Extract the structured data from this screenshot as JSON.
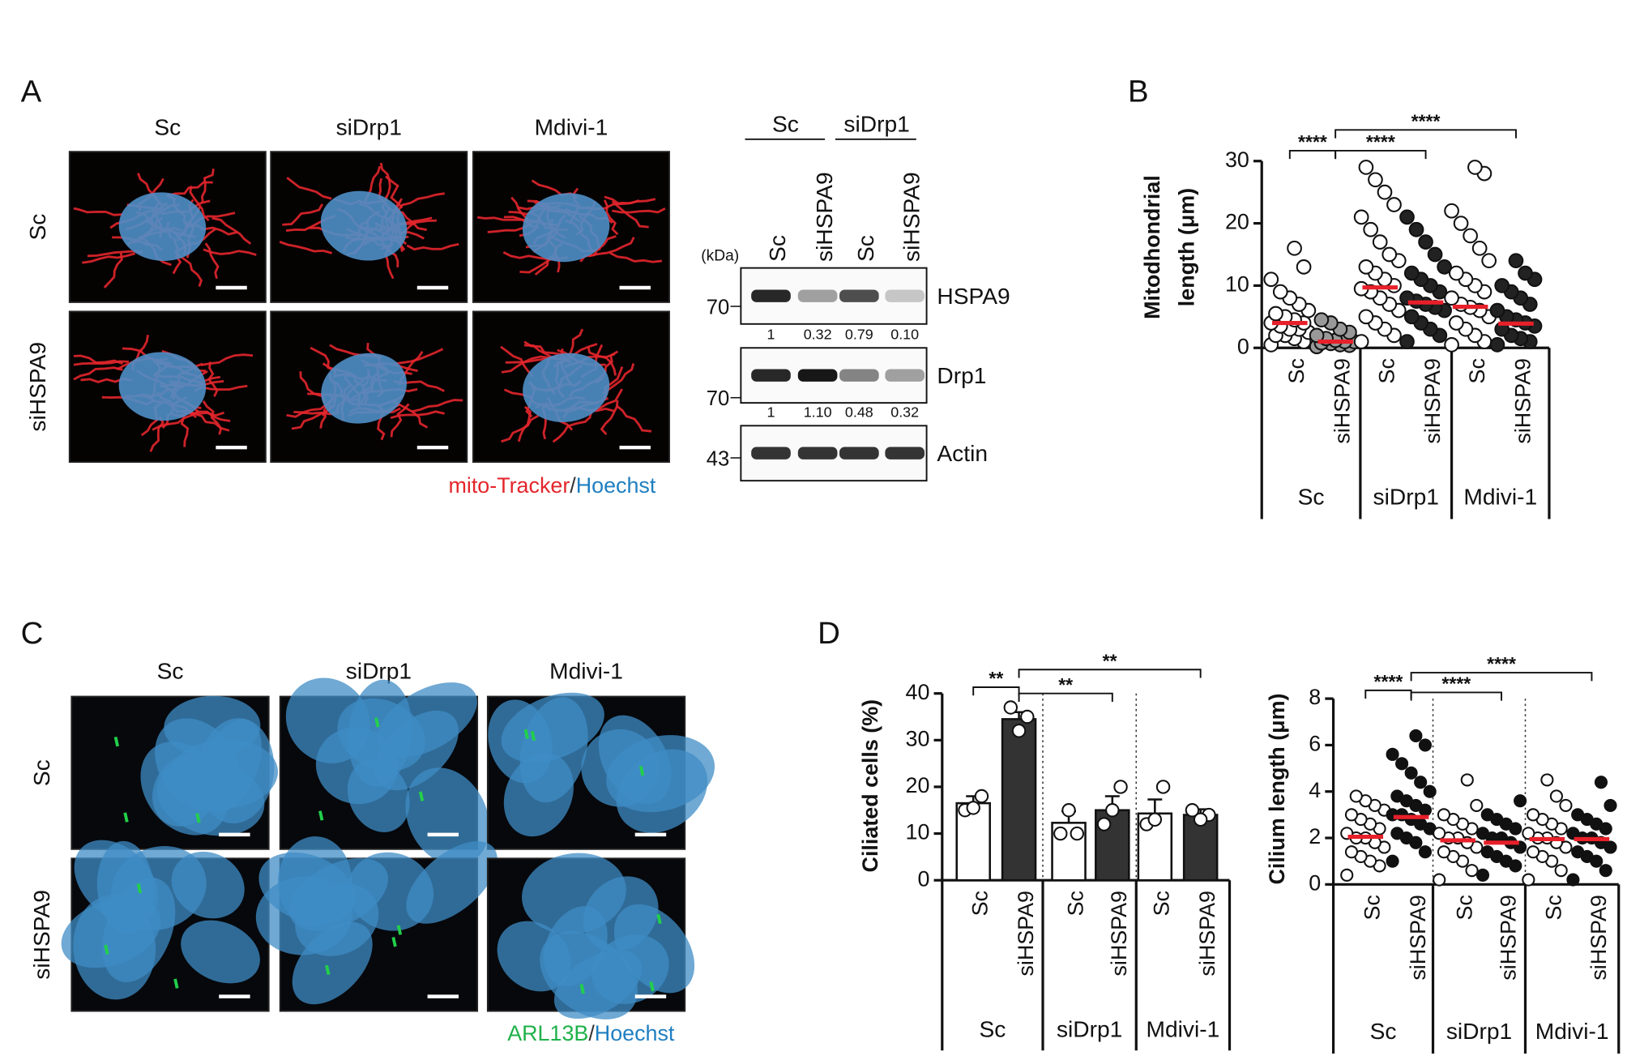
{
  "panel_labels": [
    "A",
    "B",
    "C",
    "D"
  ],
  "panel_a": {
    "columns": [
      "Sc",
      "siDrp1",
      "Mdivi-1"
    ],
    "rows": [
      "Sc",
      "siHSPA9"
    ],
    "legend": [
      {
        "text": "mito-Tracker",
        "color": "#e3262c"
      },
      {
        "text": "/",
        "color": "#333333"
      },
      {
        "text": "Hoechst",
        "color": "#1f7fc1"
      }
    ]
  },
  "western": {
    "unit": "(kDa)",
    "groups": [
      "Sc",
      "siDrp1"
    ],
    "lanes": [
      "Sc",
      "siHSPA9",
      "Sc",
      "siHSPA9"
    ],
    "blots": [
      {
        "name": "HSPA9",
        "marker": 70,
        "quant": [
          1,
          0.32,
          0.79,
          0.1
        ],
        "quant_labels": [
          "1",
          "0.32",
          "0.79",
          "0.10"
        ]
      },
      {
        "name": "Drp1",
        "marker": 70,
        "quant": [
          1,
          1.1,
          0.48,
          0.32
        ],
        "quant_labels": [
          "1",
          "1.10",
          "0.48",
          "0.32"
        ]
      },
      {
        "name": "Actin",
        "marker": 43
      }
    ]
  },
  "panel_c": {
    "columns": [
      "Sc",
      "siDrp1",
      "Mdivi-1"
    ],
    "rows": [
      "Sc",
      "siHSPA9"
    ],
    "legend": [
      {
        "text": "ARL13B",
        "color": "#1fb14a"
      },
      {
        "text": "/",
        "color": "#333333"
      },
      {
        "text": "Hoechst",
        "color": "#1f7fc1"
      }
    ]
  },
  "chart_data": [
    {
      "type": "dot",
      "ylabel": [
        "Mitodhondrial",
        "length (μm)"
      ],
      "ylim": [
        0,
        30
      ],
      "yticks": [
        0,
        10,
        20,
        30
      ],
      "categories": [
        "Sc",
        "siHSPA9",
        "Sc",
        "siHSPA9",
        "Sc",
        "siHSPA9"
      ],
      "groups": [
        {
          "label": "Sc",
          "span": [
            0,
            1
          ]
        },
        {
          "label": "siDrp1",
          "span": [
            2,
            3
          ]
        },
        {
          "label": "Mdivi-1",
          "span": [
            4,
            5
          ]
        }
      ],
      "point_colors": [
        "#ffffff",
        "#999999",
        "#ffffff",
        "#222222",
        "#ffffff",
        "#222222"
      ],
      "points": [
        [
          0.5,
          1,
          1.5,
          2,
          2,
          2.5,
          3,
          3,
          3.5,
          4,
          4,
          4.5,
          5,
          5.5,
          6,
          7,
          8,
          9,
          11,
          13,
          16
        ],
        [
          0.2,
          0.4,
          0.5,
          0.7,
          0.8,
          1,
          1,
          1.2,
          1.5,
          2,
          2.5,
          3,
          4,
          4.5
        ],
        [
          1,
          2,
          3,
          4,
          5,
          6,
          7,
          8,
          9,
          9.5,
          10,
          11,
          12,
          13,
          14,
          15,
          17,
          19,
          21,
          23,
          25,
          27,
          29
        ],
        [
          1,
          2,
          3,
          4,
          5,
          6,
          6.5,
          7,
          7.5,
          8,
          9,
          10,
          11,
          12,
          13,
          15,
          17,
          19,
          21
        ],
        [
          0.5,
          1,
          2,
          3,
          4,
          5,
          6,
          6.5,
          7,
          8,
          9,
          10,
          11,
          12,
          14,
          16,
          18,
          20,
          22,
          28,
          29
        ],
        [
          0.5,
          1,
          1.5,
          2,
          3,
          3.5,
          4,
          4.5,
          5,
          6,
          7,
          8,
          9,
          10,
          11,
          12,
          14
        ]
      ],
      "means": [
        4,
        1,
        9.7,
        7.3,
        6.6,
        3.9
      ],
      "mean_color": "#e8202a",
      "dividers": false,
      "significance": [
        {
          "from": 0,
          "to": 1,
          "label": "****"
        },
        {
          "from": 1,
          "to": 3,
          "label": "****"
        },
        {
          "from": 1,
          "to": 5,
          "label": "****"
        }
      ]
    },
    {
      "type": "bar",
      "ylabel": [
        "Ciliated cells (%)"
      ],
      "ylim": [
        0,
        40
      ],
      "yticks": [
        0,
        10,
        20,
        30,
        40
      ],
      "categories": [
        "Sc",
        "siHSPA9",
        "Sc",
        "siHSPA9",
        "Sc",
        "siHSPA9"
      ],
      "groups": [
        {
          "label": "Sc",
          "span": [
            0,
            1
          ]
        },
        {
          "label": "siDrp1",
          "span": [
            2,
            3
          ]
        },
        {
          "label": "Mdivi-1",
          "span": [
            4,
            5
          ]
        }
      ],
      "values": [
        16.5,
        34.5,
        12.3,
        15,
        14.3,
        14
      ],
      "errors": [
        1.5,
        1.5,
        2.5,
        3,
        3,
        1.2
      ],
      "bar_colors": [
        "#ffffff",
        "#333333",
        "#ffffff",
        "#333333",
        "#ffffff",
        "#333333"
      ],
      "point_colors": [
        "#ffffff",
        "#ffffff",
        "#ffffff",
        "#ffffff",
        "#ffffff",
        "#ffffff"
      ],
      "points": [
        [
          15,
          18,
          15.5
        ],
        [
          37,
          35,
          32
        ],
        [
          10,
          10,
          15
        ],
        [
          12,
          20,
          15
        ],
        [
          12,
          20,
          13
        ],
        [
          15,
          14,
          13
        ]
      ],
      "dividers": true,
      "significance": [
        {
          "from": 0,
          "to": 1,
          "label": "**"
        },
        {
          "from": 1,
          "to": 3,
          "label": "**"
        },
        {
          "from": 1,
          "to": 5,
          "label": "**"
        }
      ]
    },
    {
      "type": "dot",
      "ylabel": [
        "Cilium length (μm)"
      ],
      "ylim": [
        0,
        8
      ],
      "yticks": [
        0,
        2,
        4,
        6,
        8
      ],
      "categories": [
        "Sc",
        "siHSPA9",
        "Sc",
        "siHSPA9",
        "Sc",
        "siHSPA9"
      ],
      "groups": [
        {
          "label": "Sc",
          "span": [
            0,
            1
          ]
        },
        {
          "label": "siDrp1",
          "span": [
            2,
            3
          ]
        },
        {
          "label": "Mdivi-1",
          "span": [
            4,
            5
          ]
        }
      ],
      "point_colors": [
        "#ffffff",
        "#111111",
        "#ffffff",
        "#111111",
        "#ffffff",
        "#111111"
      ],
      "points": [
        [
          0.4,
          0.8,
          1,
          1.2,
          1.4,
          1.6,
          1.8,
          2,
          2,
          2.2,
          2.4,
          2.6,
          2.8,
          3,
          3.2,
          3.4,
          3.6,
          3.8
        ],
        [
          1,
          1.4,
          1.8,
          2,
          2.2,
          2.4,
          2.6,
          2.8,
          3,
          3,
          3.2,
          3.4,
          3.6,
          3.8,
          4,
          4.4,
          4.8,
          5.2,
          5.6,
          6,
          6.4
        ],
        [
          0.2,
          0.6,
          1,
          1.2,
          1.4,
          1.6,
          1.8,
          2,
          2,
          2.2,
          2.4,
          2.6,
          2.8,
          3,
          3.4,
          4.5
        ],
        [
          0.4,
          0.8,
          1,
          1.2,
          1.4,
          1.6,
          1.8,
          2,
          2,
          2.2,
          2.4,
          2.6,
          2.8,
          3,
          3.6
        ],
        [
          0.2,
          0.6,
          1,
          1.2,
          1.4,
          1.6,
          1.8,
          2,
          2,
          2.2,
          2.4,
          2.6,
          2.8,
          3,
          3.4,
          3.8,
          4.5
        ],
        [
          0.2,
          0.6,
          1,
          1.2,
          1.4,
          1.6,
          1.8,
          2,
          2,
          2.2,
          2.4,
          2.6,
          2.8,
          3,
          3.4,
          4.4
        ]
      ],
      "means": [
        2.05,
        2.9,
        1.9,
        1.8,
        1.95,
        1.95
      ],
      "mean_color": "#e8202a",
      "dividers": true,
      "significance": [
        {
          "from": 0,
          "to": 1,
          "label": "****"
        },
        {
          "from": 1,
          "to": 3,
          "label": "****"
        },
        {
          "from": 1,
          "to": 5,
          "label": "****"
        }
      ]
    }
  ]
}
